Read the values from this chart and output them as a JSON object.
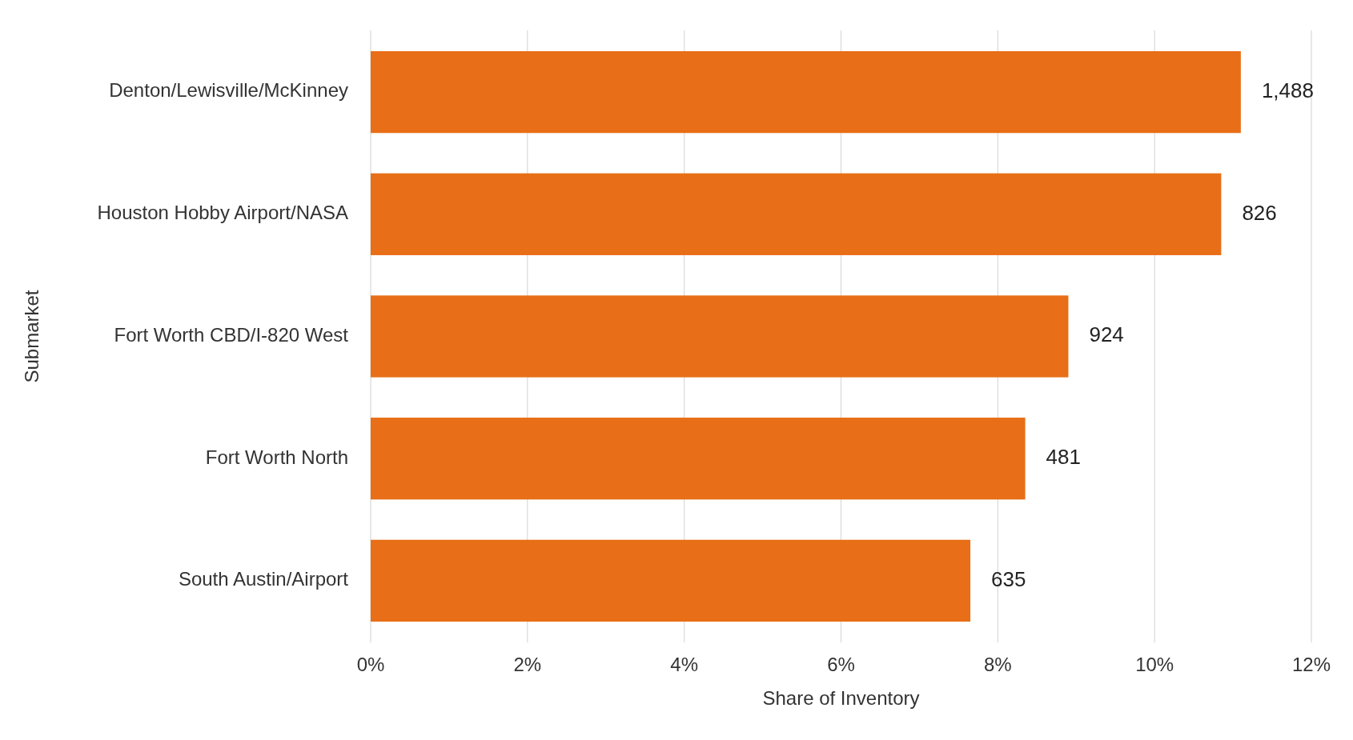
{
  "chart_data": {
    "type": "bar",
    "orientation": "horizontal",
    "xlabel": "Share of Inventory",
    "ylabel": "Submarket",
    "categories": [
      "Denton/Lewisville/McKinney",
      "Houston Hobby Airport/NASA",
      "Fort Worth CBD/I-820 West",
      "Fort Worth North",
      "South Austin/Airport"
    ],
    "values": [
      11.1,
      10.85,
      8.9,
      8.35,
      7.65
    ],
    "annotations": [
      {
        "text": "1,488",
        "x": 11.1,
        "y": "Denton/Lewisville/McKinney"
      },
      {
        "text": "826",
        "x": 10.85,
        "y": "Houston Hobby Airport/NASA"
      },
      {
        "text": "924",
        "x": 8.9,
        "y": "Fort Worth CBD/I-820 West"
      },
      {
        "text": "481",
        "x": 8.35,
        "y": "Fort Worth North"
      },
      {
        "text": "635",
        "x": 7.65,
        "y": "South Austin/Airport"
      }
    ],
    "color": "#e86e17",
    "xlim": [
      0,
      12
    ],
    "xticks": [
      {
        "value": 0,
        "label": "0%"
      },
      {
        "value": 2,
        "label": "2%"
      },
      {
        "value": 4,
        "label": "4%"
      },
      {
        "value": 6,
        "label": "6%"
      },
      {
        "value": 8,
        "label": "8%"
      },
      {
        "value": 10,
        "label": "10%"
      },
      {
        "value": 12,
        "label": "12%"
      }
    ],
    "grid": "x"
  }
}
